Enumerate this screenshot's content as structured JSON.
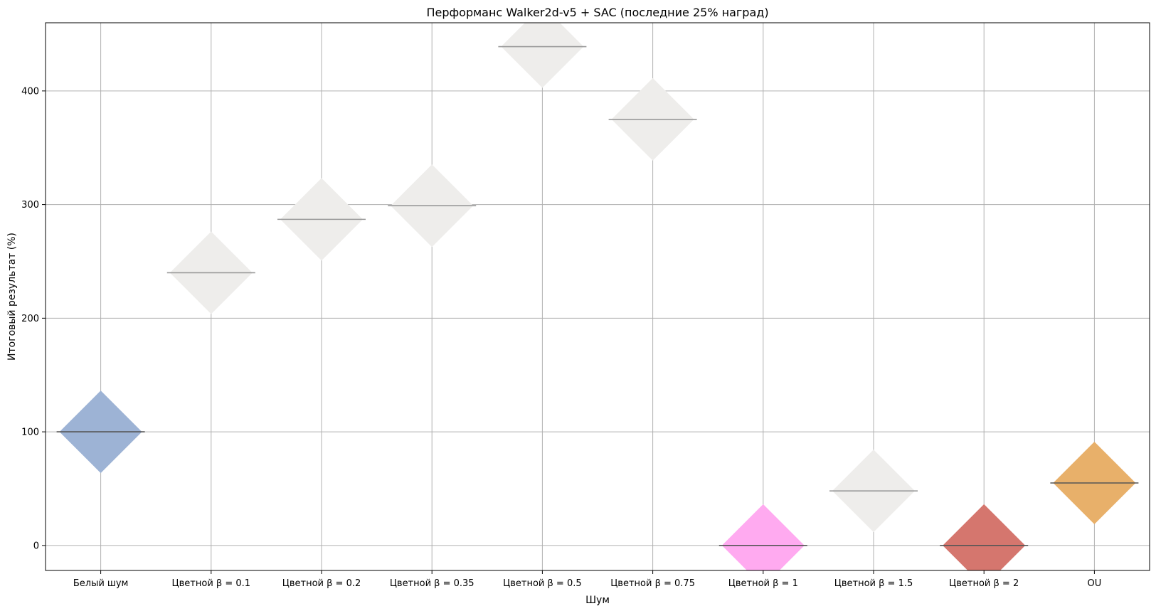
{
  "chart_data": {
    "type": "scatter",
    "title": "Перформанс Walker2d-v5 + SAC (последние 25% наград)",
    "xlabel": "Шум",
    "ylabel": "Итоговый результат (%)",
    "categories": [
      "Белый шум",
      "Цветной β = 0.1",
      "Цветной β = 0.2",
      "Цветной β = 0.35",
      "Цветной β = 0.5",
      "Цветной β = 0.75",
      "Цветной β = 1",
      "Цветной β = 1.5",
      "Цветной β = 2",
      "OU"
    ],
    "values": [
      100,
      240,
      287,
      299,
      439,
      375,
      0,
      48,
      0,
      55
    ],
    "colors": [
      "#9db3d5",
      "#eeedeb",
      "#eeedeb",
      "#eeedeb",
      "#eeedeb",
      "#eeedeb",
      "#ffaaf0",
      "#eeedeb",
      "#d5766e",
      "#e8b06a"
    ],
    "marker": "diamond",
    "median_line": true,
    "ylim": [
      -22,
      460
    ],
    "yticks": [
      0,
      100,
      200,
      300,
      400
    ],
    "grid": true,
    "legend": false
  }
}
